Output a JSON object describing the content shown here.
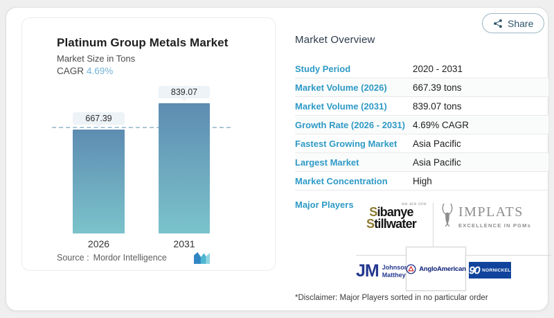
{
  "share": {
    "label": "Share"
  },
  "chart_panel": {
    "title": "Platinum Group Metals Market",
    "subtitle": "Market Size in Tons",
    "cagr_label": "CAGR",
    "cagr_value": "4.69%",
    "source_label": "Source :",
    "source_name": "Mordor Intelligence"
  },
  "chart_data": {
    "type": "bar",
    "title": "Platinum Group Metals Market",
    "ylabel": "Market Size in Tons",
    "categories": [
      "2026",
      "2031"
    ],
    "values": [
      667.39,
      839.07
    ],
    "value_labels": [
      "667.39",
      "839.07"
    ],
    "reference_line_value": 667.39,
    "cagr": "4.69%",
    "bar_gradient_top": "#5e8cb2",
    "bar_gradient_bottom": "#7bc3cb",
    "legend": "none",
    "grid": "off"
  },
  "overview": {
    "heading": "Market Overview",
    "rows": [
      {
        "label": "Study Period",
        "value": "2020 - 2031"
      },
      {
        "label": "Market Volume (2026)",
        "value": "667.39 tons"
      },
      {
        "label": "Market Volume (2031)",
        "value": "839.07 tons"
      },
      {
        "label": "Growth Rate (2026 - 2031)",
        "value": "4.69% CAGR"
      },
      {
        "label": "Fastest Growing Market",
        "value": "Asia Pacific"
      },
      {
        "label": "Largest Market",
        "value": "Asia Pacific"
      },
      {
        "label": "Market Concentration",
        "value": "High"
      }
    ],
    "major_players_label": "Major Players",
    "disclaimer": "*Disclaimer: Major Players sorted in no particular order"
  },
  "players": {
    "sibanye": {
      "tagline": "we are one",
      "line1": "Sibanye",
      "line2": "Stillwater"
    },
    "implats": {
      "name": "IMPLATS",
      "tagline": "EXCELLENCE IN PGMs"
    },
    "johnson_matthey": {
      "initials": "JM",
      "line1": "Johnson",
      "line2": "Matthey"
    },
    "anglo_american": {
      "name": "AngloAmerican"
    },
    "nornickel": {
      "number": "90",
      "name": "NORNICKEL"
    }
  },
  "colors": {
    "accent_blue": "#2e9ac6",
    "cagr_blue": "#74b3d8",
    "share_teal": "#2e566b",
    "nornickel_blue": "#10449c",
    "jm_navy": "#24388f",
    "anglo_navy": "#0b1f77",
    "sibanye_gold": "#8d7a2f",
    "implats_gray": "#8d8d8d",
    "dashed_line": "#aac6d4"
  }
}
